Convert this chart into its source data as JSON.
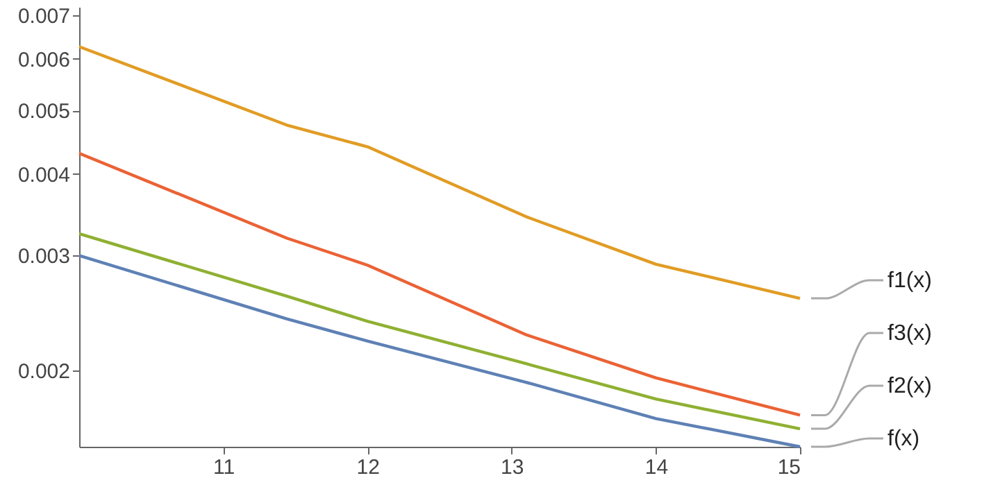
{
  "chart_data": {
    "type": "line",
    "log": true,
    "xlim": [
      10,
      15
    ],
    "xticks": [
      11,
      12,
      13,
      14,
      15
    ],
    "ylim": [
      0.00153,
      0.0072
    ],
    "yticks": [
      0.002,
      0.003,
      0.004,
      0.005,
      0.006,
      0.007
    ],
    "grid": false,
    "legend": "right",
    "line_style": "solid",
    "marker": "none",
    "x": [
      10,
      11.44,
      12,
      13.1,
      14,
      15
    ],
    "series": [
      {
        "name": "f1(x)",
        "color": "#e19c24",
        "values": [
          0.00626,
          0.00475,
          0.0044,
          0.00344,
          0.00291,
          0.00258
        ]
      },
      {
        "name": "f3(x)",
        "color": "#eb6235",
        "values": [
          0.0043,
          0.00319,
          0.0029,
          0.00227,
          0.00195,
          0.00171
        ]
      },
      {
        "name": "f2(x)",
        "color": "#8fb032",
        "values": [
          0.00324,
          0.0026,
          0.00238,
          0.00205,
          0.00181,
          0.00163
        ]
      },
      {
        "name": "f(x)",
        "color": "#5e81b5",
        "values": [
          0.003,
          0.0024,
          0.00222,
          0.00192,
          0.00169,
          0.00153
        ]
      }
    ]
  }
}
